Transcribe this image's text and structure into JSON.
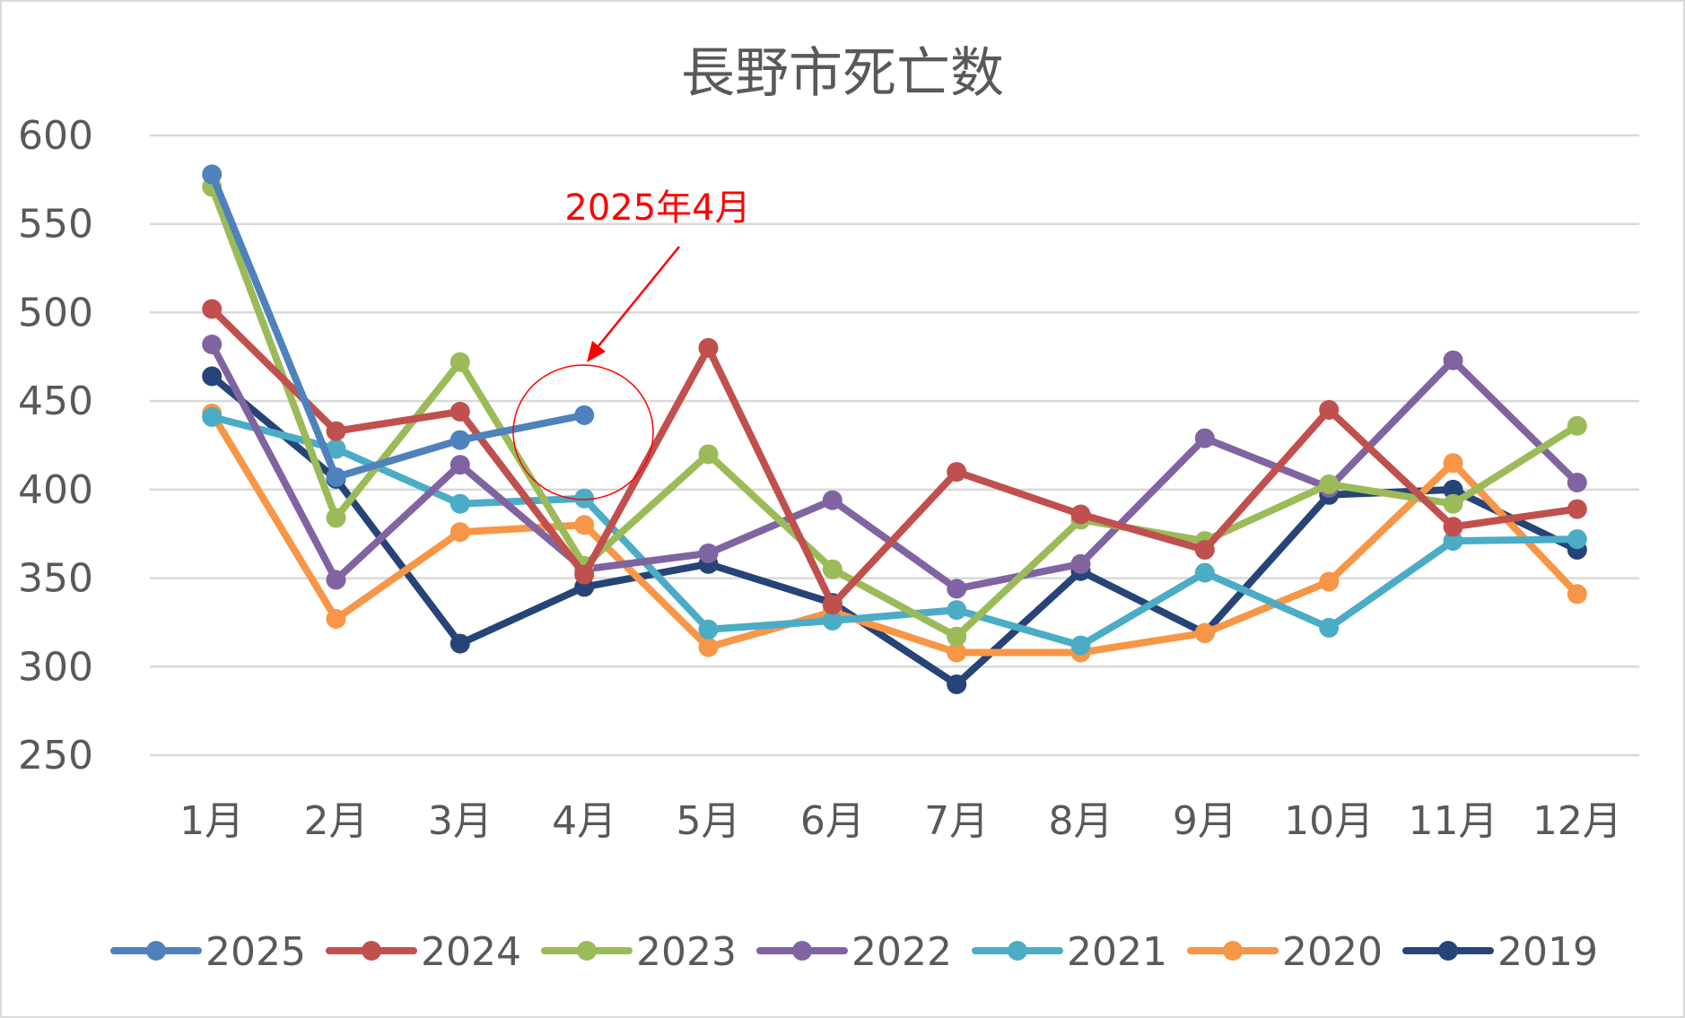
{
  "chart_data": {
    "type": "line",
    "title": "長野市死亡数",
    "xlabel": "",
    "ylabel": "",
    "ylim": [
      250,
      600
    ],
    "yticks": [
      250,
      300,
      350,
      400,
      450,
      500,
      550,
      600
    ],
    "grid": true,
    "legend_position": "bottom",
    "categories": [
      "1月",
      "2月",
      "3月",
      "4月",
      "5月",
      "6月",
      "7月",
      "8月",
      "9月",
      "10月",
      "11月",
      "12月"
    ],
    "series": [
      {
        "name": "2019",
        "color": "#264478",
        "values": [
          464,
          406,
          313,
          345,
          358,
          336,
          290,
          354,
          319,
          397,
          400,
          366
        ]
      },
      {
        "name": "2020",
        "color": "#f79646",
        "values": [
          443,
          327,
          376,
          380,
          311,
          331,
          308,
          308,
          319,
          348,
          415,
          341
        ]
      },
      {
        "name": "2021",
        "color": "#4bacc6",
        "values": [
          441,
          423,
          392,
          395,
          321,
          326,
          332,
          312,
          353,
          322,
          371,
          372
        ]
      },
      {
        "name": "2022",
        "color": "#8064a2",
        "values": [
          482,
          349,
          414,
          355,
          364,
          394,
          344,
          358,
          429,
          401,
          473,
          404
        ]
      },
      {
        "name": "2023",
        "color": "#9bbb59",
        "values": [
          571,
          384,
          472,
          357,
          420,
          355,
          317,
          383,
          371,
          403,
          392,
          436
        ]
      },
      {
        "name": "2024",
        "color": "#c0504d",
        "values": [
          502,
          433,
          444,
          352,
          480,
          335,
          410,
          386,
          366,
          445,
          379,
          389
        ]
      },
      {
        "name": "2025",
        "color": "#4f81bd",
        "values": [
          578,
          407,
          428,
          442,
          null,
          null,
          null,
          null,
          null,
          null,
          null,
          null
        ]
      }
    ],
    "legend_order": [
      "2025",
      "2024",
      "2023",
      "2022",
      "2021",
      "2020",
      "2019"
    ],
    "annotation": {
      "text": "2025年4月",
      "color": "#ff0000",
      "target_category": "4月",
      "target_value": 442
    }
  }
}
